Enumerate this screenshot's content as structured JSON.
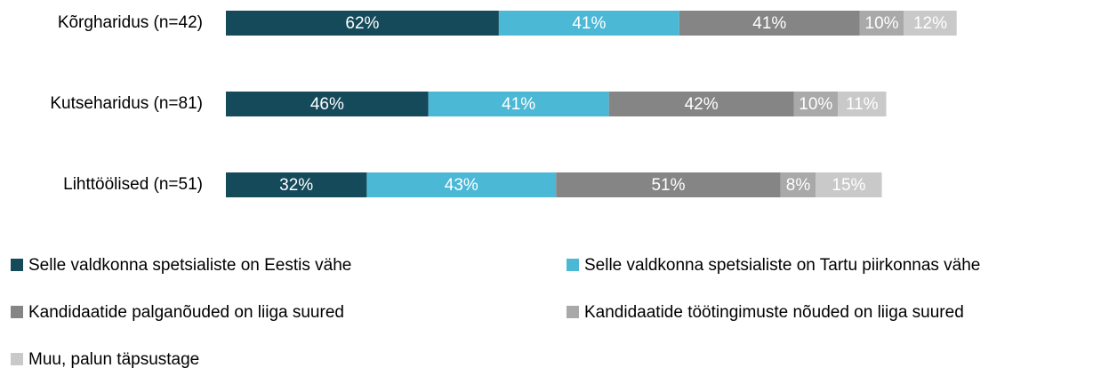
{
  "chart_data": {
    "type": "stacked-bar",
    "categories": [
      "Kõrgharidus (n=42)",
      "Kutseharidus (n=81)",
      "Lihttöölised (n=51)"
    ],
    "series": [
      {
        "name": "Selle valdkonna spetsialiste on Eestis vähe",
        "color": "#154a5a",
        "values": [
          62,
          46,
          32
        ],
        "value_labels": [
          "62%",
          "46%",
          "32%"
        ]
      },
      {
        "name": "Selle valdkonna spetsialiste on Tartu piirkonnas vähe",
        "color": "#4bb8d6",
        "values": [
          41,
          41,
          43
        ],
        "value_labels": [
          "41%",
          "41%",
          "43%"
        ]
      },
      {
        "name": "Kandidaatide palganõuded on liiga suured",
        "color": "#858585",
        "values": [
          41,
          42,
          51
        ],
        "value_labels": [
          "41%",
          "42%",
          "51%"
        ]
      },
      {
        "name": "Kandidaatide töötingimuste nõuded on liiga suured",
        "color": "#a9a9a9",
        "values": [
          10,
          10,
          8
        ],
        "value_labels": [
          "10%",
          "10%",
          "8%"
        ]
      },
      {
        "name": "Muu, palun täpsustage",
        "color": "#c9c9c9",
        "values": [
          12,
          11,
          15
        ],
        "value_labels": [
          "12%",
          "11%",
          "15%"
        ]
      }
    ]
  }
}
